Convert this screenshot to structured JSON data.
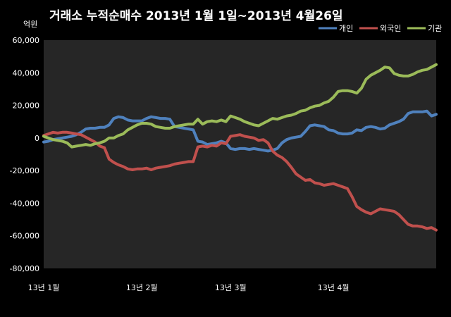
{
  "chart_data": {
    "type": "line",
    "title": "거래소 누적순매수 2013년 1월 1일~2013년 4월26일",
    "unit": "억원",
    "ylim": [
      -80000,
      60000
    ],
    "yticks": [
      60000,
      40000,
      20000,
      0,
      -20000,
      -40000,
      -60000,
      -80000
    ],
    "ytick_labels": [
      "60,000",
      "40,000",
      "20,000",
      "0",
      "-20,000",
      "-40,000",
      "-60,000",
      "-80,000"
    ],
    "xlim": [
      0,
      84
    ],
    "xticks": [
      0,
      21,
      40,
      62
    ],
    "xtick_labels": [
      "13년 1월",
      "13년 2월",
      "13년 3월",
      "13년 4월"
    ],
    "grid": false,
    "legend_position": "top-right",
    "plot_background": "#262626",
    "series": [
      {
        "name": "개인",
        "color": "#4f81bd",
        "values": [
          -2500,
          -2000,
          -1000,
          -500,
          0,
          500,
          1000,
          2000,
          3500,
          5500,
          6000,
          6000,
          6500,
          6500,
          8000,
          12000,
          13000,
          12500,
          11000,
          10500,
          10500,
          10500,
          12000,
          13000,
          12500,
          12000,
          12000,
          11500,
          7000,
          6500,
          6000,
          5500,
          5000,
          -2000,
          -2500,
          -4000,
          -3500,
          -3000,
          -2000,
          -3000,
          -6500,
          -7000,
          -6500,
          -6500,
          -7000,
          -6500,
          -7000,
          -7500,
          -8000,
          -7500,
          -6500,
          -3000,
          -1000,
          0,
          500,
          1000,
          4000,
          7500,
          8000,
          7500,
          7000,
          5000,
          4500,
          3000,
          2500,
          2500,
          3000,
          5000,
          4500,
          6500,
          7000,
          6500,
          5500,
          6000,
          8000,
          9000,
          10000,
          11500,
          15000,
          16000,
          16000,
          16000,
          16500,
          13500,
          14500
        ]
      },
      {
        "name": "외국인",
        "color": "#c0504d",
        "values": [
          1500,
          2500,
          3500,
          3000,
          3500,
          3500,
          3000,
          2500,
          2000,
          500,
          -1000,
          -2500,
          -5000,
          -6000,
          -13000,
          -15000,
          -16500,
          -17500,
          -19000,
          -19500,
          -19000,
          -19000,
          -18500,
          -19500,
          -18500,
          -18000,
          -17500,
          -17000,
          -16000,
          -15500,
          -15000,
          -14500,
          -14500,
          -5500,
          -5000,
          -5500,
          -4500,
          -5000,
          -3000,
          -3500,
          1000,
          1500,
          2000,
          1000,
          500,
          0,
          -1500,
          -1000,
          -3000,
          -8000,
          -10500,
          -12000,
          -14500,
          -18000,
          -22000,
          -24000,
          -26000,
          -25500,
          -27500,
          -28000,
          -29000,
          -28500,
          -28000,
          -29000,
          -30000,
          -31000,
          -36000,
          -42000,
          -44000,
          -45500,
          -46500,
          -45000,
          -43500,
          -44000,
          -44500,
          -45000,
          -47000,
          -50000,
          -53000,
          -54000,
          -54000,
          -54500,
          -55500,
          -55000,
          -56500
        ]
      },
      {
        "name": "기관",
        "color": "#9bbb59",
        "values": [
          1000,
          0,
          -1000,
          -1500,
          -2000,
          -3000,
          -5500,
          -5000,
          -4500,
          -4000,
          -4500,
          -3500,
          -3000,
          -2000,
          0,
          0,
          1500,
          2500,
          5000,
          6500,
          8000,
          9000,
          9000,
          8500,
          7000,
          6500,
          6000,
          6000,
          7000,
          7500,
          8000,
          8500,
          8500,
          11500,
          8500,
          10000,
          10500,
          10000,
          11000,
          10000,
          13500,
          12500,
          11500,
          10000,
          9000,
          8000,
          7500,
          9000,
          10500,
          12000,
          11500,
          12500,
          13500,
          14000,
          15000,
          16500,
          17000,
          18500,
          19500,
          20000,
          21500,
          22500,
          25000,
          28500,
          29000,
          29000,
          28500,
          27500,
          30500,
          36000,
          38500,
          40000,
          41500,
          43500,
          43000,
          39500,
          38500,
          38000,
          38000,
          39000,
          40500,
          41500,
          42000,
          43500,
          45000
        ]
      }
    ]
  }
}
